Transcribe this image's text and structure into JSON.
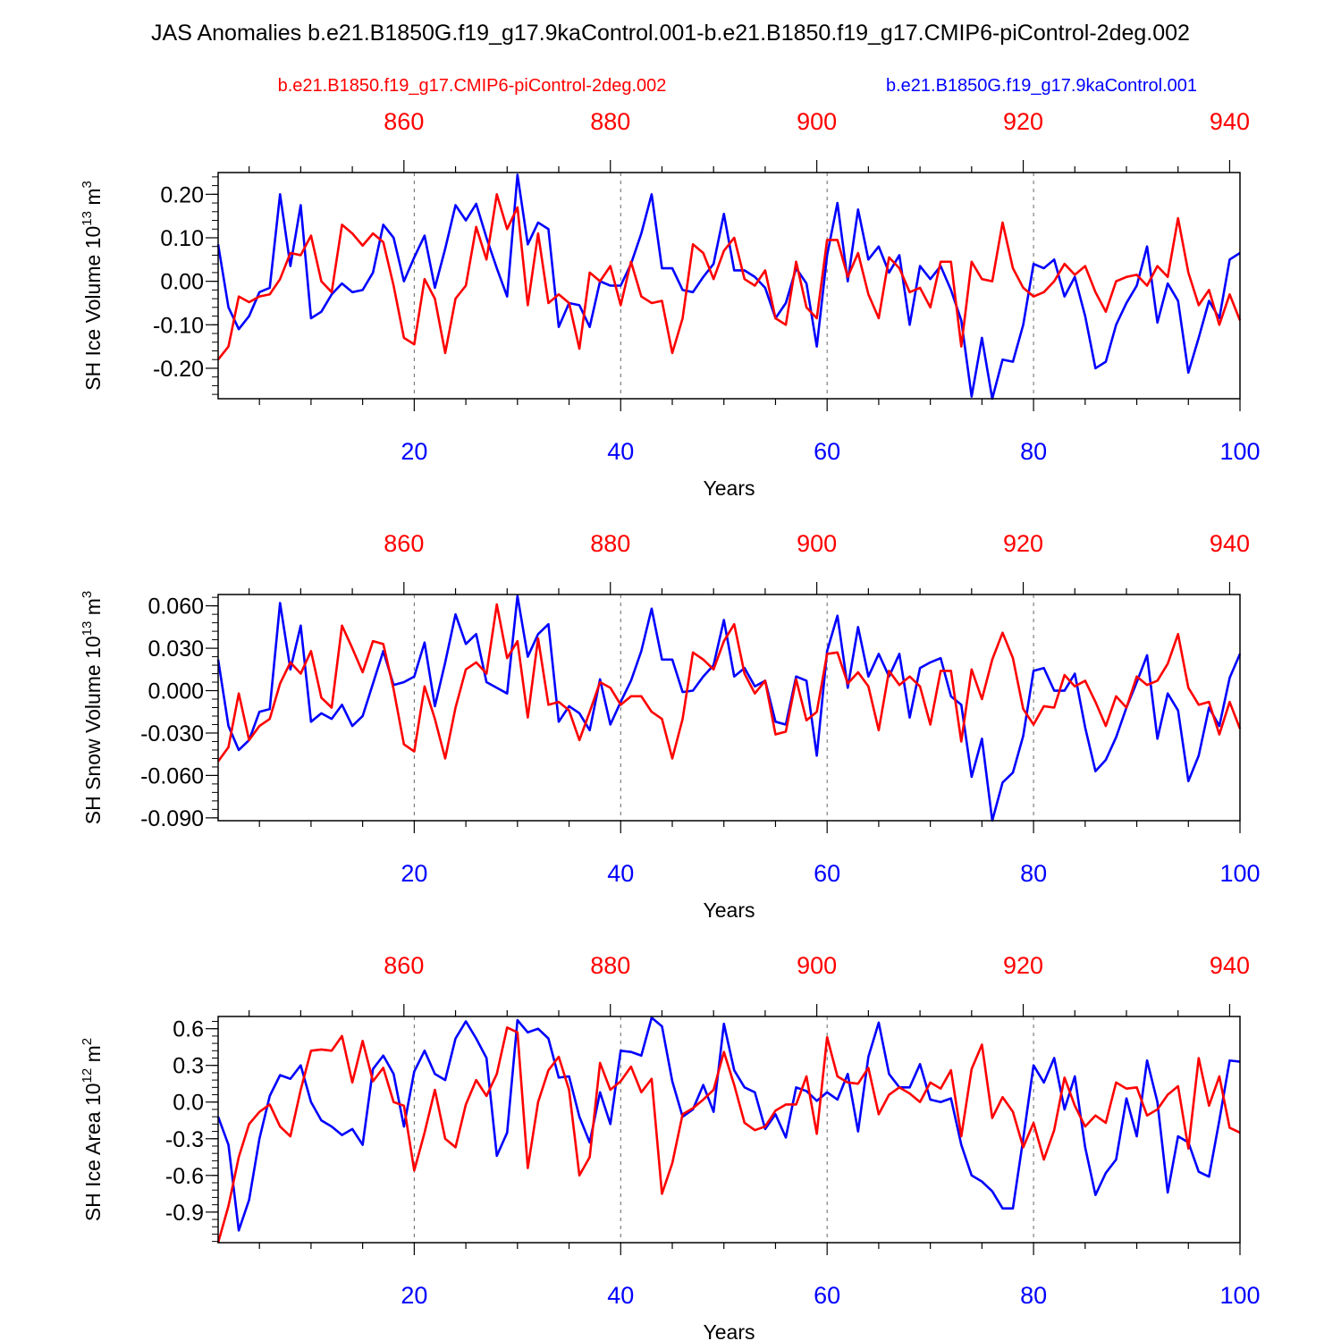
{
  "title": "JAS Anomalies b.e21.B1850G.f19_g17.9kaControl.001-b.e21.B1850.f19_g17.CMIP6-piControl-2deg.002",
  "legend": {
    "red_label": "b.e21.B1850.f19_g17.CMIP6-piControl-2deg.002",
    "blue_label": "b.e21.B1850G.f19_g17.9kaControl.001"
  },
  "colors": {
    "red": "#ff0000",
    "blue": "#0000ff",
    "axis": "#000000",
    "grid": "#666666"
  },
  "chart_data": [
    {
      "type": "line",
      "ylabel": "SH Ice Volume 10",
      "ylabel_exp": "13",
      "ylabel_unit": " m",
      "ylabel_unit_exp": "3",
      "xlabel": "Years",
      "xlim": [
        1,
        100
      ],
      "top_xlim": [
        842,
        941
      ],
      "ylim": [
        -0.27,
        0.25
      ],
      "yticks": [
        -0.2,
        -0.1,
        0.0,
        0.1,
        0.2
      ],
      "yticklabels": [
        "-0.20",
        "-0.10",
        "0.00",
        "0.10",
        "0.20"
      ],
      "yminor_step": 0.02,
      "xticks": [
        20,
        40,
        60,
        80,
        100
      ],
      "xticklabels": [
        "20",
        "40",
        "60",
        "80",
        "100"
      ],
      "top_xticks": [
        860,
        880,
        900,
        920,
        940
      ],
      "top_xticklabels": [
        "860",
        "880",
        "900",
        "920",
        "940"
      ],
      "series": [
        {
          "name": "b.e21.B1850G.f19_g17.9kaControl.001",
          "color": "blue",
          "values": [
            0.085,
            -0.06,
            -0.11,
            -0.08,
            -0.025,
            -0.015,
            0.2,
            0.035,
            0.175,
            -0.085,
            -0.07,
            -0.03,
            -0.005,
            -0.025,
            -0.02,
            0.02,
            0.13,
            0.1,
            0.0,
            0.055,
            0.105,
            -0.015,
            0.075,
            0.175,
            0.14,
            0.178,
            0.1,
            0.03,
            -0.035,
            0.245,
            0.085,
            0.135,
            0.12,
            -0.105,
            -0.05,
            -0.055,
            -0.105,
            0.0,
            -0.01,
            -0.01,
            0.04,
            0.11,
            0.2,
            0.03,
            0.03,
            -0.02,
            -0.025,
            0.01,
            0.04,
            0.155,
            0.025,
            0.025,
            0.01,
            -0.015,
            -0.085,
            -0.05,
            0.03,
            -0.005,
            -0.15,
            0.06,
            0.18,
            0.0,
            0.165,
            0.05,
            0.08,
            0.02,
            0.06,
            -0.1,
            0.035,
            0.005,
            0.035,
            -0.02,
            -0.09,
            -0.265,
            -0.13,
            -0.27,
            -0.18,
            -0.185,
            -0.1,
            0.04,
            0.03,
            0.05,
            -0.035,
            0.01,
            -0.08,
            -0.2,
            -0.185,
            -0.1,
            -0.05,
            -0.01,
            0.08,
            -0.095,
            -0.005,
            -0.045,
            -0.21,
            -0.13,
            -0.045,
            -0.085,
            0.05,
            0.065
          ]
        },
        {
          "name": "b.e21.B1850.f19_g17.CMIP6-piControl-2deg.002",
          "color": "red",
          "values": [
            -0.18,
            -0.15,
            -0.035,
            -0.048,
            -0.035,
            -0.03,
            0.005,
            0.065,
            0.06,
            0.105,
            0.0,
            -0.025,
            0.13,
            0.11,
            0.082,
            0.11,
            0.09,
            -0.01,
            -0.13,
            -0.145,
            0.005,
            -0.04,
            -0.165,
            -0.04,
            -0.01,
            0.125,
            0.05,
            0.2,
            0.12,
            0.17,
            -0.055,
            0.11,
            -0.05,
            -0.03,
            -0.05,
            -0.155,
            0.02,
            0.0,
            0.035,
            -0.055,
            0.045,
            -0.035,
            -0.05,
            -0.045,
            -0.165,
            -0.085,
            0.085,
            0.065,
            0.005,
            0.07,
            0.1,
            0.005,
            -0.01,
            0.025,
            -0.085,
            -0.1,
            0.045,
            -0.06,
            -0.085,
            0.095,
            0.095,
            0.01,
            0.065,
            -0.03,
            -0.085,
            0.055,
            0.03,
            -0.025,
            -0.015,
            -0.06,
            0.045,
            0.045,
            -0.15,
            0.045,
            0.005,
            0.0,
            0.135,
            0.03,
            -0.015,
            -0.035,
            -0.025,
            0.0,
            0.04,
            0.015,
            0.035,
            -0.025,
            -0.07,
            0.0,
            0.01,
            0.015,
            -0.01,
            0.035,
            0.01,
            0.145,
            0.02,
            -0.055,
            -0.02,
            -0.1,
            -0.03,
            -0.09
          ]
        }
      ]
    },
    {
      "type": "line",
      "ylabel": "SH Snow Volume 10",
      "ylabel_exp": "13",
      "ylabel_unit": " m",
      "ylabel_unit_exp": "3",
      "xlabel": "Years",
      "xlim": [
        1,
        100
      ],
      "top_xlim": [
        842,
        941
      ],
      "ylim": [
        -0.092,
        0.068
      ],
      "yticks": [
        -0.09,
        -0.06,
        -0.03,
        0.0,
        0.03,
        0.06
      ],
      "yticklabels": [
        "-0.090",
        "-0.060",
        "-0.030",
        "0.000",
        "0.030",
        "0.060"
      ],
      "yminor_step": 0.006,
      "xticks": [
        20,
        40,
        60,
        80,
        100
      ],
      "xticklabels": [
        "20",
        "40",
        "60",
        "80",
        "100"
      ],
      "top_xticks": [
        860,
        880,
        900,
        920,
        940
      ],
      "top_xticklabels": [
        "860",
        "880",
        "900",
        "920",
        "940"
      ],
      "series": [
        {
          "name": "b.e21.B1850G.f19_g17.9kaControl.001",
          "color": "blue",
          "values": [
            0.022,
            -0.025,
            -0.042,
            -0.035,
            -0.015,
            -0.013,
            0.062,
            0.015,
            0.046,
            -0.022,
            -0.016,
            -0.02,
            -0.01,
            -0.025,
            -0.018,
            0.005,
            0.028,
            0.004,
            0.006,
            0.01,
            0.034,
            -0.011,
            0.02,
            0.054,
            0.033,
            0.04,
            0.006,
            0.002,
            -0.002,
            0.067,
            0.024,
            0.04,
            0.047,
            -0.022,
            -0.011,
            -0.016,
            -0.028,
            0.008,
            -0.024,
            -0.008,
            0.007,
            0.028,
            0.058,
            0.022,
            0.022,
            -0.001,
            0.0,
            0.01,
            0.018,
            0.05,
            0.01,
            0.016,
            0.003,
            0.007,
            -0.022,
            -0.024,
            0.01,
            0.007,
            -0.046,
            0.028,
            0.053,
            0.002,
            0.045,
            0.01,
            0.026,
            0.01,
            0.026,
            -0.019,
            0.016,
            0.02,
            0.023,
            -0.004,
            -0.01,
            -0.061,
            -0.034,
            -0.092,
            -0.065,
            -0.058,
            -0.032,
            0.014,
            0.016,
            0.0,
            0.0,
            0.012,
            -0.026,
            -0.057,
            -0.049,
            -0.033,
            -0.012,
            0.006,
            0.025,
            -0.034,
            -0.002,
            -0.014,
            -0.064,
            -0.046,
            -0.012,
            -0.025,
            0.009,
            0.026
          ]
        },
        {
          "name": "b.e21.B1850.f19_g17.CMIP6-piControl-2deg.002",
          "color": "red",
          "values": [
            -0.05,
            -0.04,
            -0.002,
            -0.035,
            -0.025,
            -0.02,
            0.005,
            0.02,
            0.012,
            0.028,
            -0.005,
            -0.012,
            0.046,
            0.03,
            0.013,
            0.035,
            0.033,
            0.001,
            -0.038,
            -0.043,
            0.003,
            -0.02,
            -0.048,
            -0.012,
            0.015,
            0.02,
            0.012,
            0.061,
            0.023,
            0.035,
            -0.019,
            0.037,
            -0.01,
            -0.008,
            -0.014,
            -0.035,
            -0.015,
            0.006,
            0.002,
            -0.01,
            -0.004,
            -0.004,
            -0.015,
            -0.02,
            -0.048,
            -0.02,
            0.027,
            0.022,
            0.015,
            0.035,
            0.047,
            0.012,
            -0.002,
            0.007,
            -0.031,
            -0.029,
            0.008,
            -0.021,
            -0.015,
            0.026,
            0.027,
            0.005,
            0.013,
            0.003,
            -0.028,
            0.014,
            0.004,
            0.01,
            0.003,
            -0.024,
            0.014,
            0.014,
            -0.036,
            0.015,
            -0.006,
            0.022,
            0.041,
            0.023,
            -0.013,
            -0.024,
            -0.011,
            -0.012,
            0.011,
            0.003,
            0.007,
            -0.008,
            -0.025,
            -0.004,
            -0.012,
            0.01,
            0.004,
            0.007,
            0.019,
            0.04,
            0.002,
            -0.01,
            -0.008,
            -0.031,
            -0.008,
            -0.027
          ]
        }
      ]
    },
    {
      "type": "line",
      "ylabel": "SH Ice Area 10",
      "ylabel_exp": "12",
      "ylabel_unit": " m",
      "ylabel_unit_exp": "2",
      "xlabel": "Years",
      "xlim": [
        1,
        100
      ],
      "top_xlim": [
        842,
        941
      ],
      "ylim": [
        -1.15,
        0.7
      ],
      "yticks": [
        -0.9,
        -0.6,
        -0.3,
        0.0,
        0.3,
        0.6
      ],
      "yticklabels": [
        "-0.9",
        "-0.6",
        "-0.3",
        "0.0",
        "0.3",
        "0.6"
      ],
      "yminor_step": 0.06,
      "xticks": [
        20,
        40,
        60,
        80,
        100
      ],
      "xticklabels": [
        "20",
        "40",
        "60",
        "80",
        "100"
      ],
      "top_xticks": [
        860,
        880,
        900,
        920,
        940
      ],
      "top_xticklabels": [
        "860",
        "880",
        "900",
        "920",
        "940"
      ],
      "series": [
        {
          "name": "b.e21.B1850G.f19_g17.9kaControl.001",
          "color": "blue",
          "values": [
            -0.12,
            -0.35,
            -1.05,
            -0.8,
            -0.3,
            0.05,
            0.22,
            0.19,
            0.3,
            0.0,
            -0.15,
            -0.2,
            -0.27,
            -0.22,
            -0.35,
            0.27,
            0.38,
            0.23,
            -0.2,
            0.25,
            0.42,
            0.23,
            0.18,
            0.52,
            0.66,
            0.52,
            0.36,
            -0.44,
            -0.25,
            0.67,
            0.57,
            0.6,
            0.52,
            0.2,
            0.21,
            -0.12,
            -0.33,
            0.08,
            -0.18,
            0.42,
            0.41,
            0.38,
            0.69,
            0.62,
            0.17,
            -0.12,
            -0.06,
            0.14,
            -0.08,
            0.64,
            0.26,
            0.12,
            0.08,
            -0.22,
            -0.1,
            -0.29,
            0.12,
            0.09,
            0.01,
            0.08,
            0.02,
            0.23,
            -0.24,
            0.37,
            0.65,
            0.23,
            0.12,
            0.12,
            0.31,
            0.02,
            0.0,
            0.03,
            -0.35,
            -0.6,
            -0.65,
            -0.73,
            -0.87,
            -0.87,
            -0.3,
            0.3,
            0.16,
            0.36,
            -0.06,
            0.21,
            -0.37,
            -0.76,
            -0.58,
            -0.47,
            0.03,
            -0.28,
            0.34,
            0.0,
            -0.74,
            -0.28,
            -0.33,
            -0.57,
            -0.61,
            -0.15,
            0.34,
            0.33
          ]
        },
        {
          "name": "b.e21.B1850.f19_g17.CMIP6-piControl-2deg.002",
          "color": "red",
          "values": [
            -1.15,
            -0.85,
            -0.45,
            -0.18,
            -0.08,
            -0.02,
            -0.2,
            -0.28,
            0.1,
            0.42,
            0.43,
            0.42,
            0.54,
            0.16,
            0.5,
            0.17,
            0.28,
            0.0,
            -0.03,
            -0.56,
            -0.25,
            0.1,
            -0.3,
            -0.37,
            -0.02,
            0.18,
            0.05,
            0.23,
            0.61,
            0.57,
            -0.54,
            0.0,
            0.26,
            0.37,
            0.1,
            -0.6,
            -0.45,
            0.32,
            0.1,
            0.17,
            0.29,
            0.08,
            0.19,
            -0.75,
            -0.5,
            -0.1,
            -0.05,
            0.02,
            0.1,
            0.41,
            0.14,
            -0.17,
            -0.23,
            -0.2,
            -0.07,
            -0.02,
            -0.02,
            0.21,
            -0.26,
            0.53,
            0.21,
            0.16,
            0.15,
            0.28,
            -0.1,
            0.06,
            0.12,
            0.07,
            0.0,
            0.16,
            0.11,
            0.26,
            -0.28,
            0.27,
            0.47,
            -0.13,
            0.04,
            -0.08,
            -0.37,
            -0.17,
            -0.47,
            -0.23,
            0.2,
            -0.03,
            -0.2,
            -0.11,
            -0.17,
            0.16,
            0.11,
            0.12,
            -0.11,
            -0.06,
            0.06,
            0.13,
            -0.38,
            0.36,
            -0.03,
            0.21,
            -0.21,
            -0.25
          ]
        }
      ]
    }
  ]
}
